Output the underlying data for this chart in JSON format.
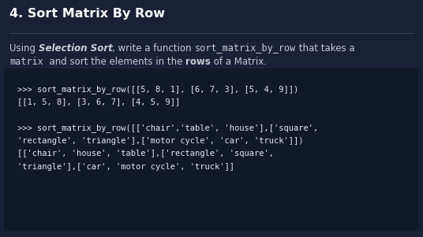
{
  "title": "4. Sort Matrix By Row",
  "bg_color": "#1a2035",
  "title_color": "#ffffff",
  "text_color": "#c8cdd8",
  "code_bg_color": "#111827",
  "code_text_color": "#e8eaf0",
  "divider_color": "#3a4060",
  "desc_line1_parts": [
    {
      "text": "Using ",
      "style": "normal"
    },
    {
      "text": "Selection Sort",
      "style": "bold-italic"
    },
    {
      "text": ", write a function ",
      "style": "normal"
    },
    {
      "text": "sort_matrix_by_row",
      "style": "mono"
    },
    {
      "text": " that takes a",
      "style": "normal"
    }
  ],
  "desc_line2_parts": [
    {
      "text": "matrix",
      "style": "mono"
    },
    {
      "text": "  and sort the elements in the ",
      "style": "normal"
    },
    {
      "text": "rows",
      "style": "bold"
    },
    {
      "text": " of a Matrix.",
      "style": "normal"
    }
  ],
  "code_lines": [
    ">>> sort_matrix_by_row([[5, 8, 1], [6, 7, 3], [5, 4, 9]])",
    "[[1, 5, 8], [3, 6, 7], [4, 5, 9]]",
    "",
    ">>> sort_matrix_by_row([['chair','table', 'house'],['square',",
    "'rectangle', 'triangle'],['motor cycle', 'car', 'truck']])",
    "[['chair', 'house', 'table'],['rectangle', 'square',",
    "'triangle'],['car', 'motor cycle', 'truck']]"
  ],
  "title_fontsize": 11.5,
  "desc_fontsize": 8.5,
  "code_fontsize": 7.5
}
